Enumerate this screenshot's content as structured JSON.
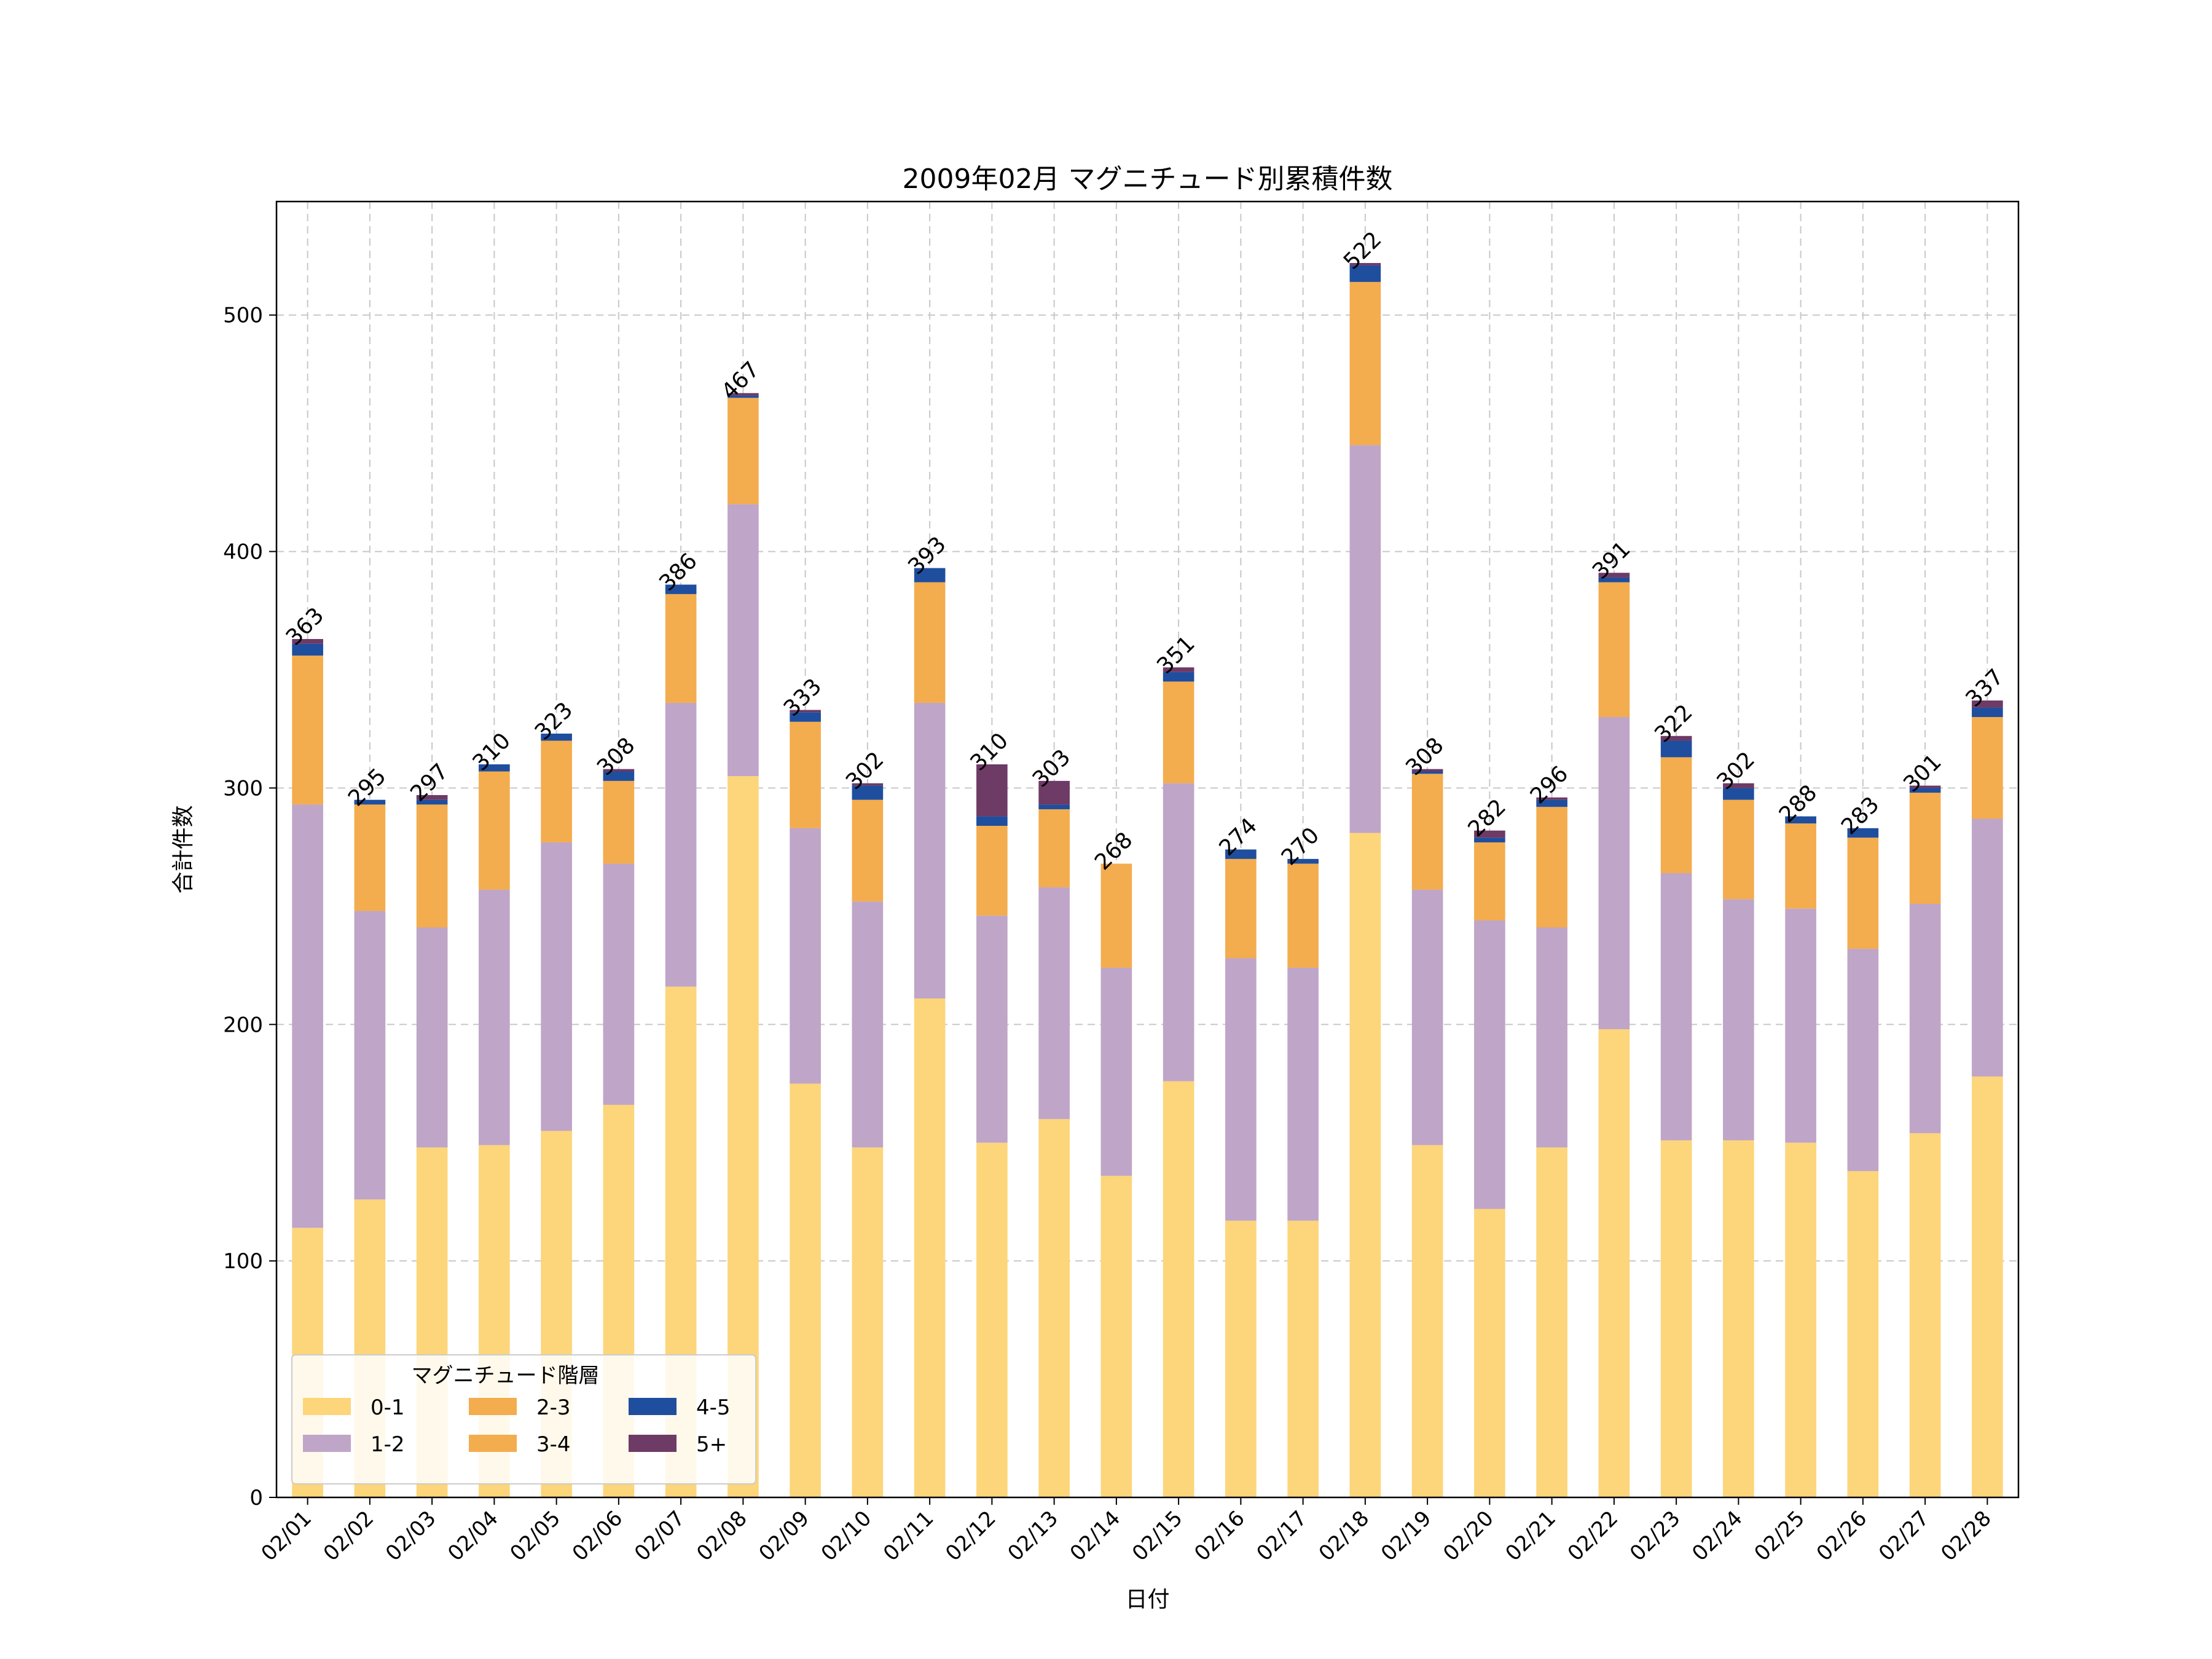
{
  "chart_data": {
    "type": "bar",
    "stacked": true,
    "title": "2009年02月 マグニチュード別累積件数",
    "xlabel": "日付",
    "ylabel": "合計件数",
    "ylim": [
      0,
      548
    ],
    "yticks": [
      0,
      100,
      200,
      300,
      400,
      500
    ],
    "grid": true,
    "categories": [
      "02/01",
      "02/02",
      "02/03",
      "02/04",
      "02/05",
      "02/06",
      "02/07",
      "02/08",
      "02/09",
      "02/10",
      "02/11",
      "02/12",
      "02/13",
      "02/14",
      "02/15",
      "02/16",
      "02/17",
      "02/18",
      "02/19",
      "02/20",
      "02/21",
      "02/22",
      "02/23",
      "02/24",
      "02/25",
      "02/26",
      "02/27",
      "02/28"
    ],
    "series": [
      {
        "name": "0-1",
        "color": "#FDD57A",
        "values": [
          114,
          126,
          148,
          149,
          155,
          166,
          216,
          305,
          175,
          148,
          211,
          150,
          160,
          136,
          176,
          117,
          117,
          281,
          149,
          122,
          148,
          198,
          151,
          151,
          150,
          138,
          154,
          178
        ]
      },
      {
        "name": "1-2",
        "color": "#BFA5C8",
        "values": [
          179,
          122,
          93,
          108,
          122,
          102,
          120,
          115,
          108,
          104,
          125,
          96,
          98,
          88,
          126,
          111,
          107,
          164,
          108,
          122,
          93,
          132,
          113,
          102,
          99,
          94,
          97,
          109
        ]
      },
      {
        "name": "2-3",
        "color": "#F3AC4E",
        "values": [
          63,
          45,
          52,
          50,
          43,
          35,
          46,
          45,
          45,
          43,
          51,
          38,
          33,
          44,
          43,
          42,
          44,
          69,
          49,
          33,
          51,
          57,
          49,
          42,
          36,
          47,
          47,
          43
        ]
      },
      {
        "name": "3-4",
        "color": "#F3AC4E",
        "values": [
          0,
          0,
          0,
          0,
          0,
          0,
          0,
          0,
          0,
          0,
          0,
          0,
          0,
          0,
          0,
          0,
          0,
          0,
          0,
          0,
          0,
          0,
          0,
          0,
          0,
          0,
          0,
          0
        ]
      },
      {
        "name": "4-5",
        "color": "#1F4E9E",
        "values": [
          5,
          2,
          2,
          3,
          3,
          4,
          4,
          1,
          4,
          6,
          6,
          4,
          2,
          0,
          4,
          4,
          2,
          7,
          1,
          2,
          3,
          2,
          7,
          5,
          3,
          4,
          2,
          4
        ]
      },
      {
        "name": "5+",
        "color": "#6E3A66",
        "values": [
          2,
          0,
          2,
          0,
          0,
          1,
          0,
          1,
          1,
          1,
          0,
          22,
          10,
          0,
          2,
          0,
          0,
          1,
          1,
          3,
          1,
          2,
          2,
          2,
          0,
          0,
          1,
          3
        ]
      }
    ],
    "totals": [
      363,
      295,
      297,
      310,
      323,
      308,
      386,
      467,
      333,
      302,
      393,
      310,
      303,
      268,
      351,
      274,
      270,
      522,
      308,
      282,
      296,
      391,
      322,
      302,
      288,
      283,
      301,
      337
    ],
    "legend": {
      "title": "マグニチュード階層",
      "placement": "lower-left",
      "ncol": 3,
      "entries": [
        "0-1",
        "1-2",
        "2-3",
        "3-4",
        "4-5",
        "5+"
      ]
    }
  }
}
